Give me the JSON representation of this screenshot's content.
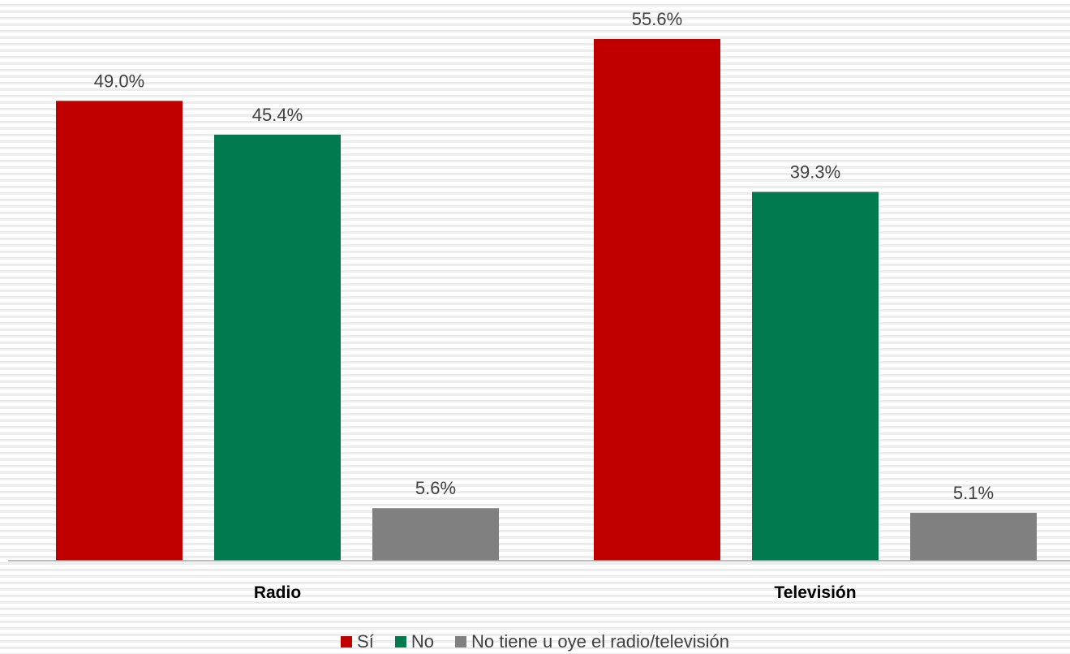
{
  "chart_data": {
    "type": "bar",
    "categories": [
      "Radio",
      "Televisión"
    ],
    "series": [
      {
        "name": "Sí",
        "values": [
          49.0,
          55.6
        ],
        "labels": [
          "49.0%",
          "55.6%"
        ],
        "color": "#c00000"
      },
      {
        "name": "No",
        "values": [
          45.4,
          39.3
        ],
        "labels": [
          "45.4%",
          "39.3%"
        ],
        "color": "#007a4e"
      },
      {
        "name": "No tiene u oye el radio/televisión",
        "values": [
          5.6,
          5.1
        ],
        "labels": [
          "5.6%",
          "5.1%"
        ],
        "color": "#808080"
      }
    ],
    "ylim": [
      0,
      60
    ],
    "grid": false,
    "legend_position": "bottom"
  }
}
